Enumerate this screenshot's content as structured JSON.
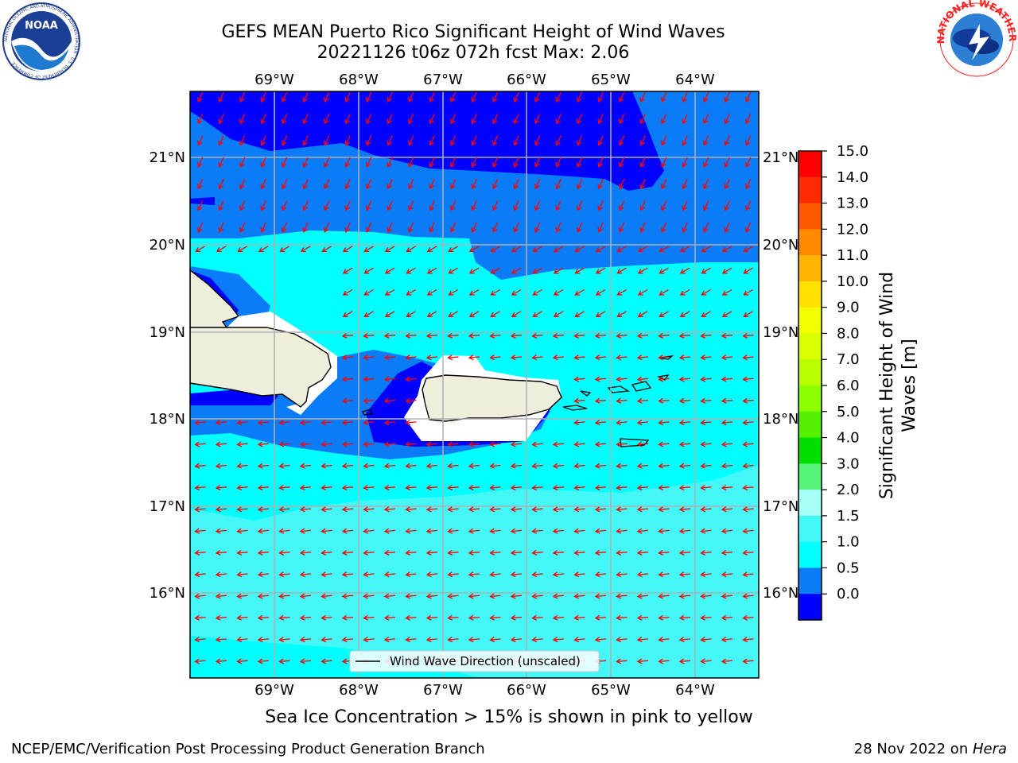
{
  "header": {
    "title_line1": "GEFS MEAN Puerto Rico Significant Height of Wind Waves",
    "title_line2": "20221126 t06z 072h fcst   Max: 2.06"
  },
  "logos": {
    "noaa_text": "NOAA",
    "noaa_ring": "NATIONAL OCEANIC AND ATMOSPHERIC ADMINISTRATION · U.S. DEPARTMENT OF COMMERCE",
    "nws_ring": "NATIONAL WEATHER SERVICE"
  },
  "map": {
    "lon_labels": [
      "69°W",
      "68°W",
      "67°W",
      "66°W",
      "65°W",
      "64°W"
    ],
    "lat_labels": [
      "21°N",
      "20°N",
      "19°N",
      "18°N",
      "17°N",
      "16°N"
    ],
    "legend_label": "Wind Wave Direction (unscaled)",
    "colors": {
      "band_0_0_5": "#0000ff",
      "band_0_5_1_0": "#0a7cf7",
      "band_1_0_1_5": "#00ffff",
      "band_1_5_2_0": "#44f8f7",
      "land": "#efeedc",
      "arrow": "#ff0000"
    }
  },
  "colorbar": {
    "label_line1": "Significant Height of Wind",
    "label_line2": "Waves [m]",
    "ticks": [
      "15.0",
      "14.0",
      "13.0",
      "12.0",
      "11.0",
      "10.0",
      "9.0",
      "8.0",
      "7.0",
      "6.0",
      "5.0",
      "4.0",
      "3.0",
      "2.0",
      "1.5",
      "1.0",
      "0.5",
      "0.0"
    ],
    "colors": [
      "#ff0000",
      "#ff2a00",
      "#ff5a00",
      "#ff8a00",
      "#ffb400",
      "#ffe000",
      "#f2ff00",
      "#d9ff00",
      "#b9ff00",
      "#8cff00",
      "#55ef00",
      "#00e000",
      "#55f37a",
      "#a8fff8",
      "#44f8f7",
      "#00ffff",
      "#0a7cf7",
      "#0000ff"
    ]
  },
  "footer": {
    "note": "Sea Ice Concentration > 15% is shown in pink to yellow",
    "credit": "NCEP/EMC/Verification Post Processing Product Generation Branch",
    "date_prefix": "28 Nov 2022 on ",
    "date_host": "Hera"
  }
}
